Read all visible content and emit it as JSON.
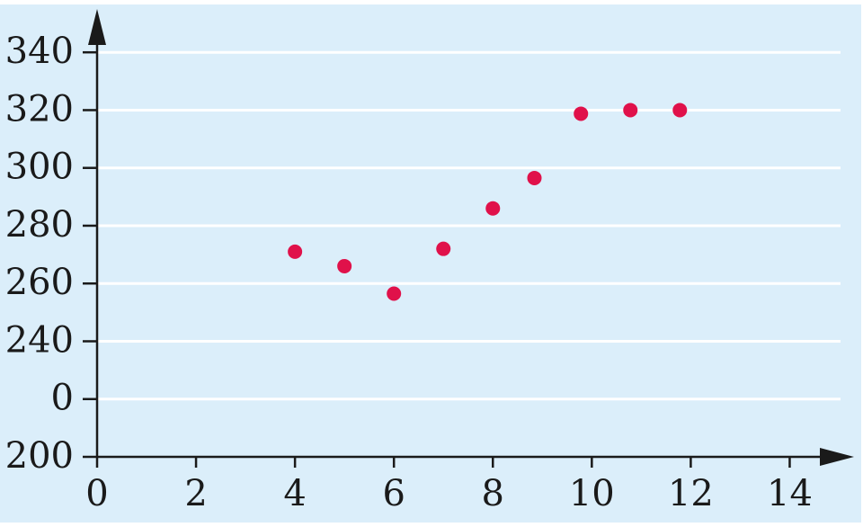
{
  "chart_data": {
    "type": "scatter",
    "x": [
      4,
      5,
      6,
      7,
      8,
      8.84,
      9.78,
      10.78,
      11.78
    ],
    "values": [
      271,
      266,
      256.5,
      272,
      286,
      296.5,
      318.75,
      320,
      320
    ],
    "color": "#e0114a",
    "xlim": [
      0,
      15.3
    ],
    "xticks": [
      0,
      2,
      4,
      6,
      8,
      10,
      12,
      14
    ],
    "ylim": [
      200,
      355
    ],
    "yticks": [
      200,
      {
        "value": 220,
        "label": "0"
      },
      240,
      260,
      280,
      300,
      320,
      340
    ],
    "grid": true
  }
}
